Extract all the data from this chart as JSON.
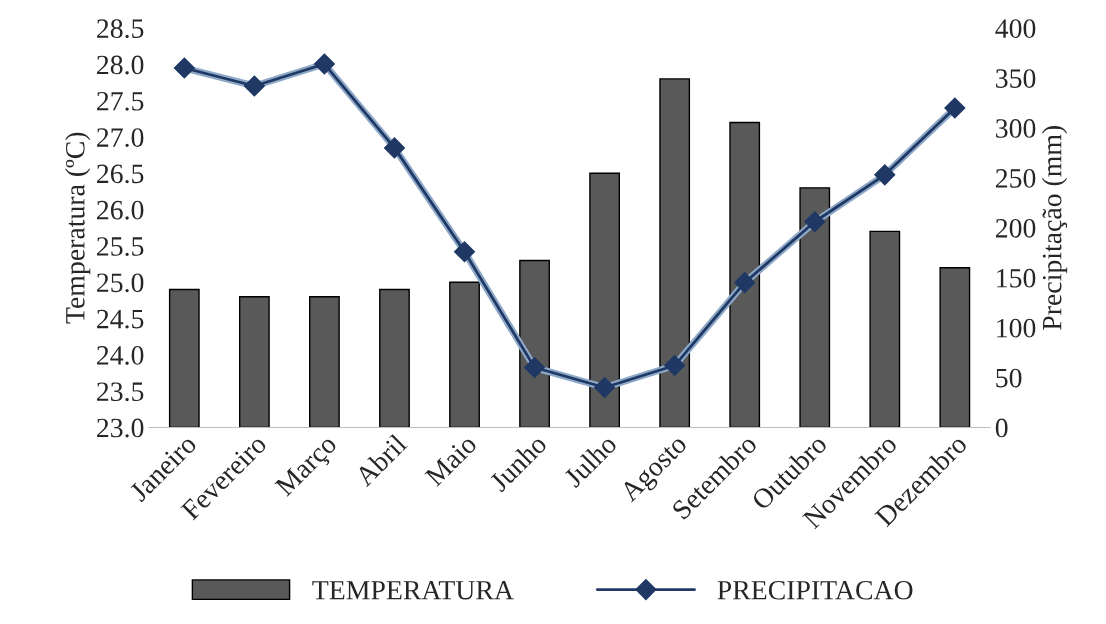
{
  "chart_data": {
    "type": "bar",
    "ylabel": "Temperatura (ºC)",
    "y2label": "Precipitação (mm)",
    "categories": [
      "Janeiro",
      "Fevereiro",
      "Março",
      "Abril",
      "Maio",
      "Junho",
      "Julho",
      "Agosto",
      "Setembro",
      "Outubro",
      "Novembro",
      "Dezembro"
    ],
    "series": [
      {
        "name": "TEMPERATURA",
        "color": "#595959",
        "values": [
          24.9,
          24.8,
          24.8,
          24.9,
          25.0,
          25.3,
          26.5,
          27.8,
          27.2,
          26.3,
          25.7,
          25.2
        ]
      },
      {
        "name": "PRECIPITACAO",
        "type": "line",
        "axis": "y2",
        "color": "#1f3864",
        "marker": "diamond",
        "values": [
          360,
          342,
          364,
          280,
          176,
          60,
          40,
          62,
          145,
          206,
          253,
          320
        ]
      }
    ],
    "ylim": [
      23.0,
      28.5
    ],
    "yticks": [
      {
        "value": 23.0,
        "label": "23.0"
      },
      {
        "value": 23.5,
        "label": "23.5"
      },
      {
        "value": 24.0,
        "label": "24.0"
      },
      {
        "value": 24.5,
        "label": "24.5"
      },
      {
        "value": 25.0,
        "label": "25.0"
      },
      {
        "value": 25.5,
        "label": "25.5"
      },
      {
        "value": 26.0,
        "label": "26.0"
      },
      {
        "value": 26.5,
        "label": "26.5"
      },
      {
        "value": 27.0,
        "label": "27.0"
      },
      {
        "value": 27.5,
        "label": "27.5"
      },
      {
        "value": 28.0,
        "label": "28.0"
      },
      {
        "value": 28.5,
        "label": "28.5"
      }
    ],
    "y2lim": [
      0,
      400
    ],
    "y2ticks": [
      0,
      50,
      100,
      150,
      200,
      250,
      300,
      350,
      400
    ],
    "grid": false,
    "legend": "bottom"
  }
}
